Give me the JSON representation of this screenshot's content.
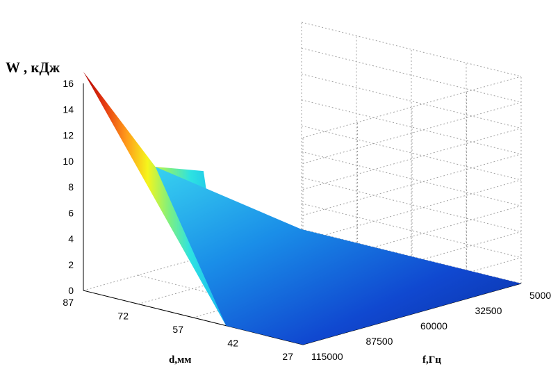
{
  "chart_data": {
    "type": "surface",
    "title": "",
    "zlabel": "W , кДж",
    "xlabel": "d,мм",
    "ylabel": "f,Гц",
    "d_ticks": [
      "87",
      "72",
      "57",
      "42",
      "27"
    ],
    "f_ticks": [
      "115000",
      "87500",
      "60000",
      "32500",
      "5000"
    ],
    "z_ticks": [
      "0",
      "2",
      "4",
      "6",
      "8",
      "10",
      "12",
      "14",
      "16"
    ],
    "d_range": [
      27,
      87
    ],
    "f_range": [
      5000,
      115000
    ],
    "zlim": [
      0,
      16
    ],
    "grid": true,
    "colormap": "jet",
    "d_values": [
      87,
      72,
      57,
      42,
      27
    ],
    "f_values": [
      5000,
      32500,
      60000,
      87500,
      115000
    ],
    "W_values": [
      [
        0.0,
        16.9
      ],
      [
        0.0,
        0.0
      ],
      [
        0.0,
        0.0
      ]
    ],
    "W_corners": {
      "d87_f115000": 16.9,
      "d27_f115000": 0.0,
      "d27_f5000": 0.0,
      "d87_f5000": 0.0
    },
    "W_max_colorbar": 16.9
  }
}
